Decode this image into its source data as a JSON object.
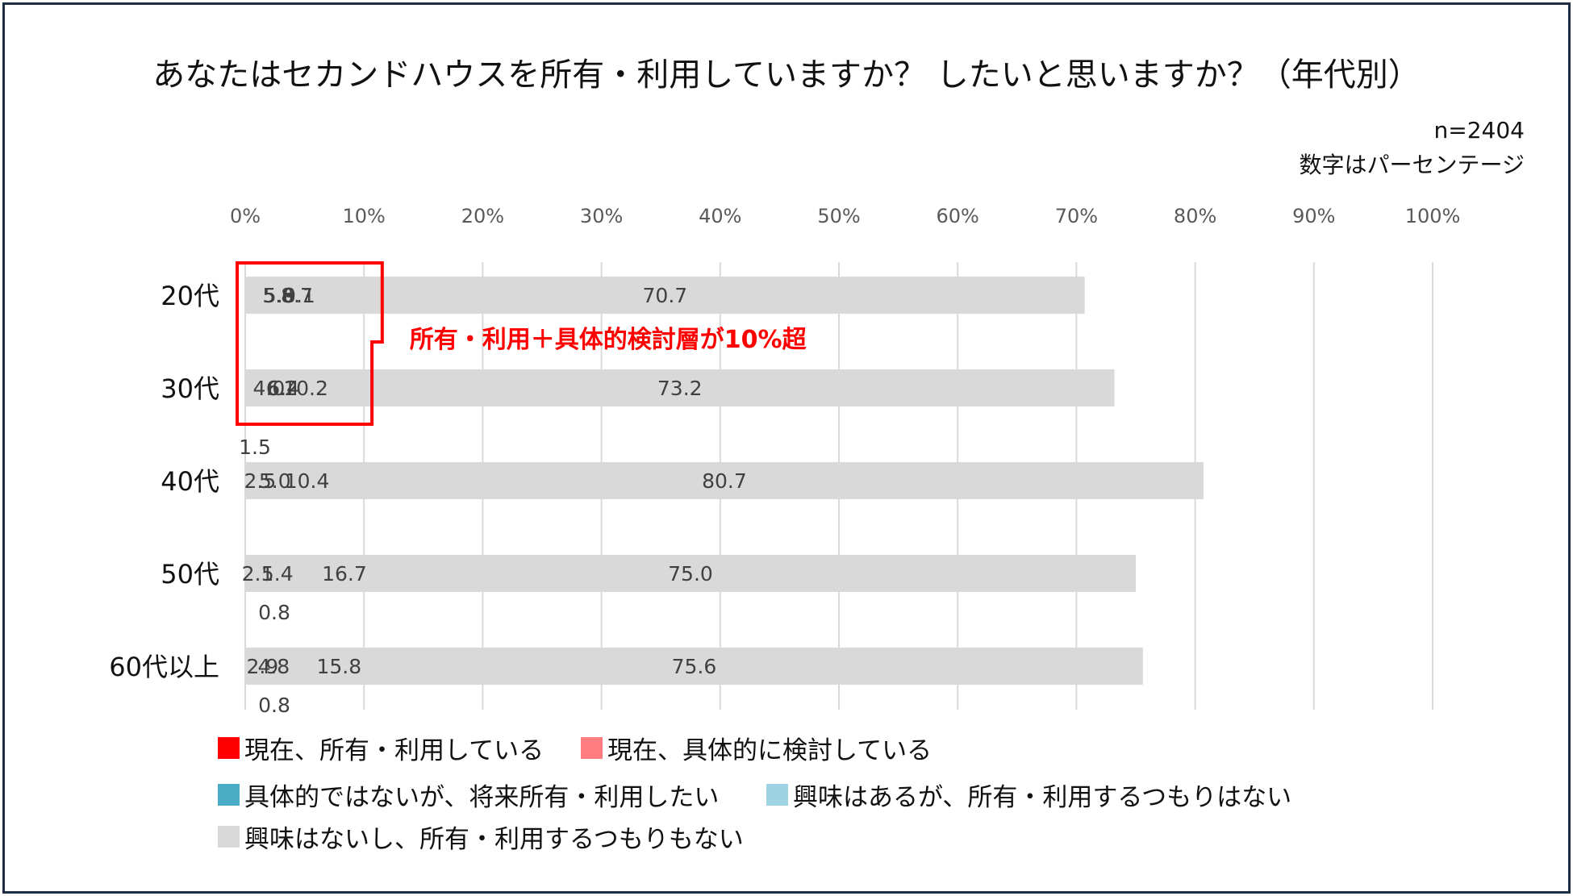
{
  "chart_data": {
    "type": "bar",
    "orientation": "horizontal",
    "stacked": true,
    "title": "あなたはセカンドハウスを所有・利用していますか？ したいと思いますか？（年代別）",
    "sample_note": "n=2404",
    "unit_note": "数字はパーセンテージ",
    "categories": [
      "20代",
      "30代",
      "40代",
      "50代",
      "60代以上"
    ],
    "x_range": [
      0,
      100
    ],
    "x_ticks": [
      "0%",
      "10%",
      "20%",
      "30%",
      "40%",
      "50%",
      "60%",
      "70%",
      "80%",
      "90%",
      "100%"
    ],
    "grid": true,
    "legend_position": "bottom",
    "series": [
      {
        "name": "現在、所有・利用している",
        "color": "#ff0000",
        "values": [
          5.6,
          6.4,
          1.5,
          2.1,
          2.9
        ],
        "labels": [
          "5.6",
          "6.4",
          "1.5",
          "2.1",
          "2.9"
        ]
      },
      {
        "name": "現在、具体的に検討している",
        "color": "#ff7c80",
        "values": [
          5.8,
          4.0,
          2.5,
          0.8,
          0.8
        ],
        "labels": [
          "5.8",
          "4.0",
          "2.5",
          "0.8",
          "0.8"
        ]
      },
      {
        "name": "具体的ではないが、将来所有・利用したい",
        "color": "#4bacc6",
        "values": [
          9.1,
          6.2,
          5.0,
          5.4,
          4.8
        ],
        "labels": [
          "9.1",
          "6.2",
          "5.0",
          "5.4",
          "4.8"
        ]
      },
      {
        "name": "興味はあるが、所有・利用するつもりはない",
        "color": "#9dd3e3",
        "values": [
          8.7,
          10.2,
          10.4,
          16.7,
          15.8
        ],
        "labels": [
          "8.7",
          "10.2",
          "10.4",
          "16.7",
          "15.8"
        ]
      },
      {
        "name": "興味はないし、所有・利用するつもりもない",
        "color": "#d9d9d9",
        "values": [
          70.7,
          73.2,
          80.7,
          75.0,
          75.6
        ],
        "labels": [
          "70.7",
          "73.2",
          "80.7",
          "75.0",
          "75.6"
        ]
      }
    ],
    "annotation": {
      "text": "所有・利用＋具体的検討層が10%超",
      "color": "#ff0000",
      "target_categories": [
        "20代",
        "30代"
      ]
    }
  }
}
